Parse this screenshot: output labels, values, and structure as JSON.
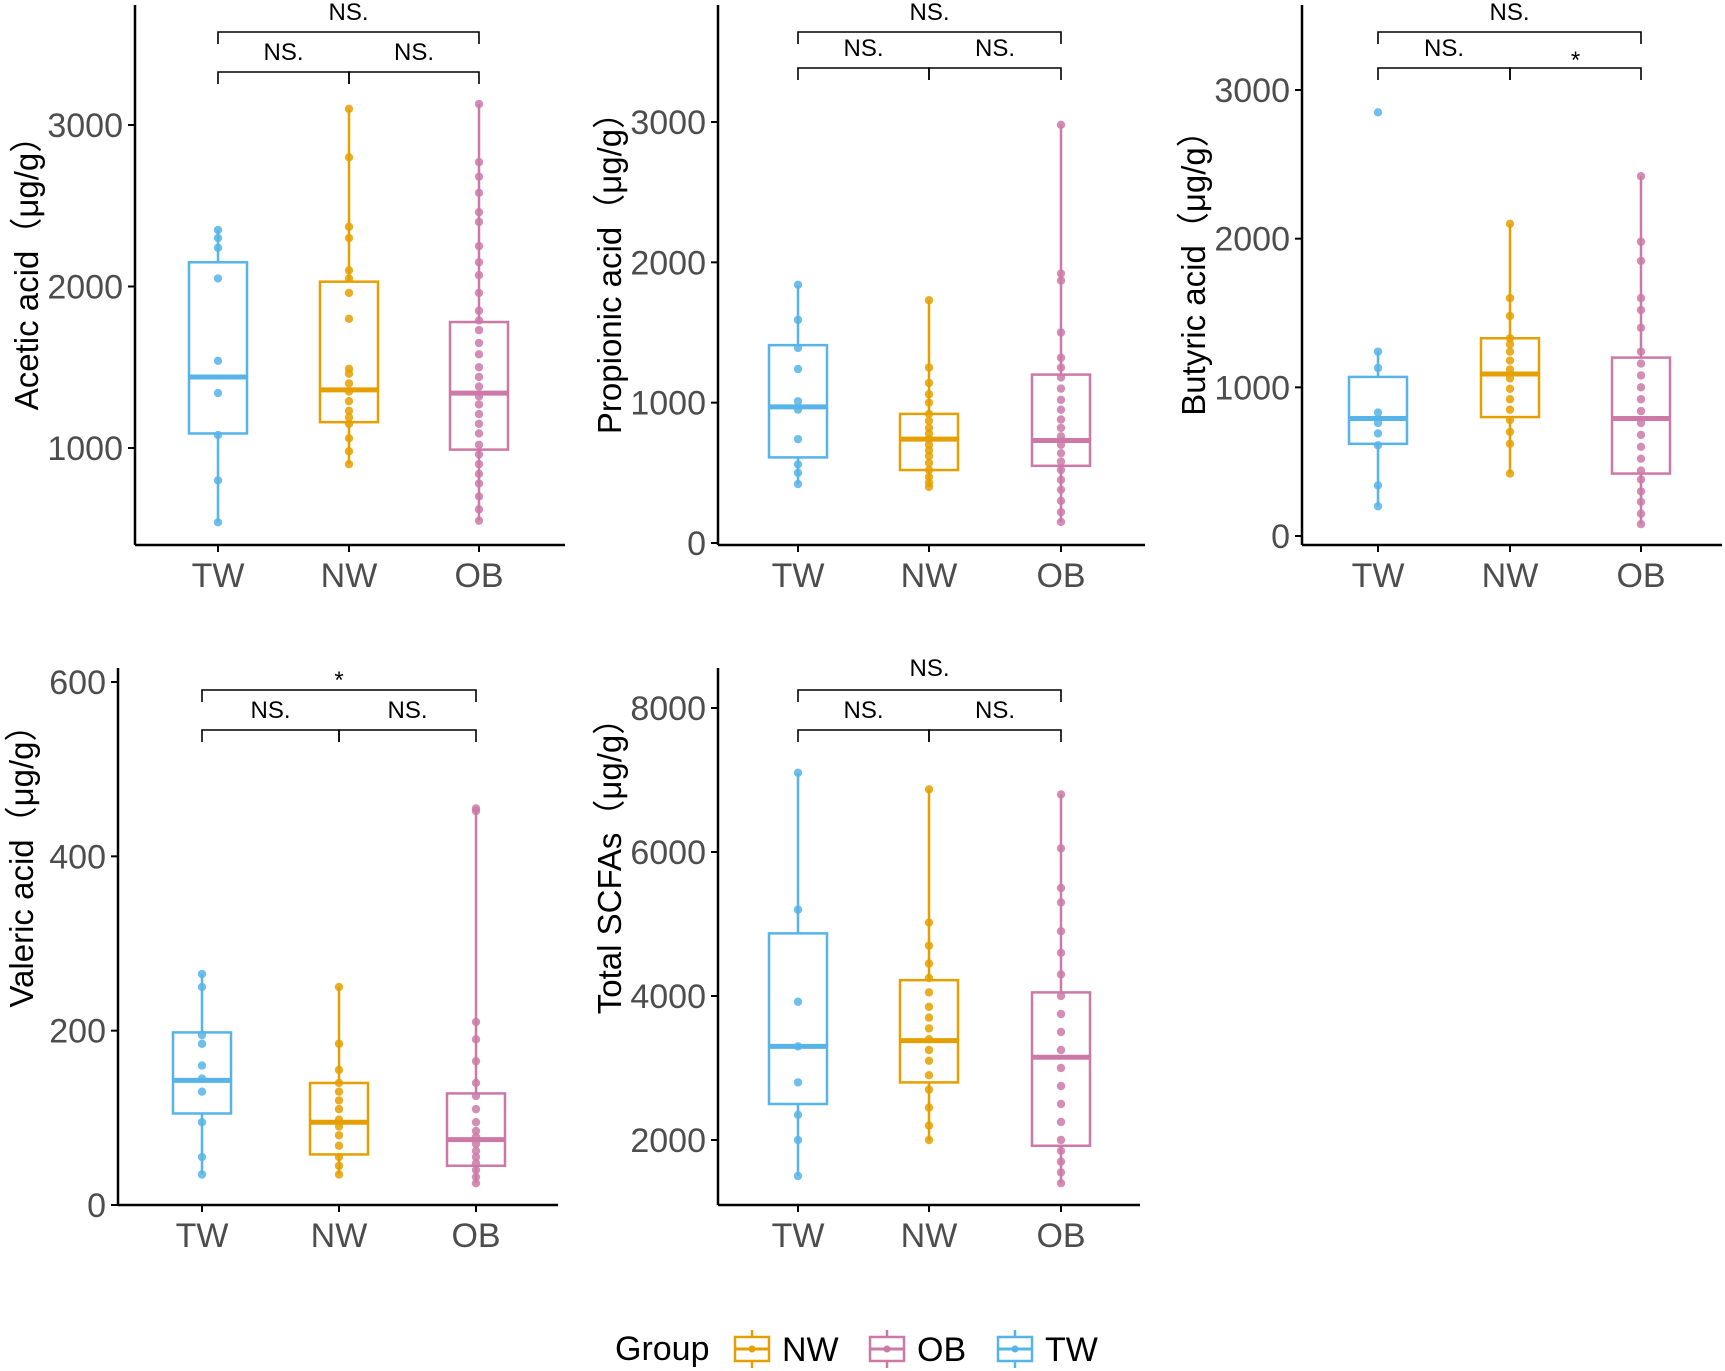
{
  "colors": {
    "NW": "#E69F00",
    "OB": "#CC79A7",
    "TW": "#56B4E9"
  },
  "legend": {
    "title": "Group",
    "items": [
      "NW",
      "OB",
      "TW"
    ]
  },
  "chart_data": [
    {
      "type": "box",
      "ylabel": "Acetic acid（μg/g）",
      "categories": [
        "TW",
        "NW",
        "OB"
      ],
      "yticks": [
        1000,
        2000,
        3000
      ],
      "ylim": [
        450,
        3700
      ],
      "boxes": [
        {
          "group": "TW",
          "min": 540,
          "q1": 1090,
          "median": 1440,
          "q3": 2150,
          "max": 2350,
          "points": [
            540,
            800,
            1080,
            1340,
            1540,
            2050,
            2240,
            2300,
            2350
          ]
        },
        {
          "group": "NW",
          "min": 900,
          "q1": 1160,
          "median": 1360,
          "q3": 2030,
          "max": 3100,
          "points": [
            900,
            980,
            1060,
            1150,
            1190,
            1230,
            1290,
            1350,
            1400,
            1460,
            1490,
            1800,
            1960,
            2050,
            2100,
            2300,
            2370,
            2800,
            3100
          ]
        },
        {
          "group": "OB",
          "min": 550,
          "q1": 990,
          "median": 1340,
          "q3": 1780,
          "max": 3130,
          "points": [
            550,
            620,
            700,
            780,
            840,
            900,
            960,
            1020,
            1090,
            1150,
            1210,
            1270,
            1320,
            1380,
            1440,
            1500,
            1580,
            1650,
            1730,
            1790,
            1850,
            1960,
            2070,
            2150,
            2250,
            2400,
            2460,
            2580,
            2680,
            2770,
            3130
          ]
        }
      ],
      "comparisons": [
        {
          "from": "TW",
          "to": "OB",
          "label": "NS."
        },
        {
          "from": "TW",
          "to": "NW",
          "label": "NS."
        },
        {
          "from": "NW",
          "to": "OB",
          "label": "NS."
        }
      ]
    },
    {
      "type": "box",
      "ylabel": "Propionic acid（μg/g）",
      "categories": [
        "TW",
        "NW",
        "OB"
      ],
      "yticks": [
        0,
        1000,
        2000,
        3000
      ],
      "ylim": [
        0,
        3800
      ],
      "boxes": [
        {
          "group": "TW",
          "min": 420,
          "q1": 610,
          "median": 970,
          "q3": 1410,
          "max": 1840,
          "points": [
            420,
            500,
            560,
            740,
            950,
            1010,
            1240,
            1390,
            1590,
            1840
          ]
        },
        {
          "group": "NW",
          "min": 400,
          "q1": 520,
          "median": 740,
          "q3": 920,
          "max": 1730,
          "points": [
            400,
            430,
            470,
            520,
            570,
            620,
            660,
            700,
            740,
            780,
            820,
            870,
            920,
            1000,
            1060,
            1140,
            1250,
            1730
          ]
        },
        {
          "group": "OB",
          "min": 150,
          "q1": 550,
          "median": 730,
          "q3": 1200,
          "max": 2980,
          "points": [
            150,
            220,
            300,
            380,
            450,
            520,
            580,
            640,
            700,
            760,
            820,
            880,
            950,
            1020,
            1100,
            1180,
            1250,
            1320,
            1500,
            1870,
            1920,
            2980
          ]
        }
      ],
      "comparisons": [
        {
          "from": "TW",
          "to": "OB",
          "label": "NS."
        },
        {
          "from": "TW",
          "to": "NW",
          "label": "NS."
        },
        {
          "from": "NW",
          "to": "OB",
          "label": "NS."
        }
      ]
    },
    {
      "type": "box",
      "ylabel": "Butyric acid（μg/g）",
      "categories": [
        "TW",
        "NW",
        "OB"
      ],
      "yticks": [
        0,
        1000,
        2000,
        3000
      ],
      "ylim": [
        -50,
        3500
      ],
      "boxes": [
        {
          "group": "TW",
          "min": 200,
          "q1": 620,
          "median": 790,
          "q3": 1070,
          "max": 1240,
          "points": [
            200,
            340,
            610,
            690,
            760,
            830,
            1130,
            1240,
            2850
          ]
        },
        {
          "group": "NW",
          "min": 420,
          "q1": 800,
          "median": 1090,
          "q3": 1330,
          "max": 2100,
          "points": [
            420,
            620,
            700,
            780,
            850,
            920,
            990,
            1060,
            1120,
            1180,
            1240,
            1290,
            1330,
            1480,
            1600,
            2100
          ]
        },
        {
          "group": "OB",
          "min": 80,
          "q1": 420,
          "median": 790,
          "q3": 1200,
          "max": 2420,
          "points": [
            80,
            150,
            230,
            300,
            380,
            440,
            520,
            600,
            680,
            760,
            840,
            920,
            1000,
            1080,
            1160,
            1240,
            1400,
            1520,
            1600,
            1850,
            1980,
            2420
          ]
        }
      ],
      "comparisons": [
        {
          "from": "TW",
          "to": "OB",
          "label": "NS."
        },
        {
          "from": "TW",
          "to": "NW",
          "label": "NS."
        },
        {
          "from": "NW",
          "to": "OB",
          "label": "*"
        }
      ]
    },
    {
      "type": "box",
      "ylabel": "Valeric acid（μg/g）",
      "categories": [
        "TW",
        "NW",
        "OB"
      ],
      "yticks": [
        0,
        200,
        400,
        600
      ],
      "ylim": [
        0,
        600
      ],
      "boxes": [
        {
          "group": "TW",
          "min": 35,
          "q1": 105,
          "median": 143,
          "q3": 198,
          "max": 265,
          "points": [
            35,
            55,
            95,
            130,
            145,
            160,
            185,
            195,
            250,
            265
          ]
        },
        {
          "group": "NW",
          "min": 35,
          "q1": 58,
          "median": 95,
          "q3": 140,
          "max": 250,
          "points": [
            35,
            45,
            55,
            68,
            80,
            90,
            98,
            110,
            120,
            130,
            140,
            155,
            185,
            250
          ]
        },
        {
          "group": "OB",
          "min": 25,
          "q1": 45,
          "median": 75,
          "q3": 128,
          "max": 453,
          "points": [
            25,
            32,
            40,
            48,
            55,
            62,
            70,
            78,
            85,
            95,
            110,
            125,
            140,
            165,
            190,
            210,
            452,
            455
          ]
        }
      ],
      "comparisons": [
        {
          "from": "TW",
          "to": "OB",
          "label": "*"
        },
        {
          "from": "TW",
          "to": "NW",
          "label": "NS."
        },
        {
          "from": "NW",
          "to": "OB",
          "label": "NS."
        }
      ]
    },
    {
      "type": "box",
      "ylabel": "Total SCFAs（μg/g）",
      "categories": [
        "TW",
        "NW",
        "OB"
      ],
      "yticks": [
        2000,
        4000,
        6000,
        8000
      ],
      "ylim": [
        1100,
        8700
      ],
      "boxes": [
        {
          "group": "TW",
          "min": 1500,
          "q1": 2500,
          "median": 3300,
          "q3": 4870,
          "max": 7100,
          "points": [
            1500,
            2000,
            2350,
            2800,
            3300,
            3920,
            5200,
            7100
          ]
        },
        {
          "group": "NW",
          "min": 2000,
          "q1": 2800,
          "median": 3380,
          "q3": 4220,
          "max": 6870,
          "points": [
            2000,
            2200,
            2450,
            2700,
            2900,
            3100,
            3250,
            3400,
            3550,
            3700,
            3850,
            4050,
            4250,
            4450,
            4700,
            5020,
            6870
          ]
        },
        {
          "group": "OB",
          "min": 1400,
          "q1": 1920,
          "median": 3150,
          "q3": 4050,
          "max": 6800,
          "points": [
            1400,
            1550,
            1700,
            1850,
            2000,
            2250,
            2500,
            2750,
            3000,
            3250,
            3500,
            3750,
            4000,
            4300,
            4600,
            4900,
            5300,
            5500,
            6050,
            6800
          ]
        }
      ],
      "comparisons": [
        {
          "from": "TW",
          "to": "OB",
          "label": "NS."
        },
        {
          "from": "TW",
          "to": "NW",
          "label": "NS."
        },
        {
          "from": "NW",
          "to": "OB",
          "label": "NS."
        }
      ]
    }
  ]
}
